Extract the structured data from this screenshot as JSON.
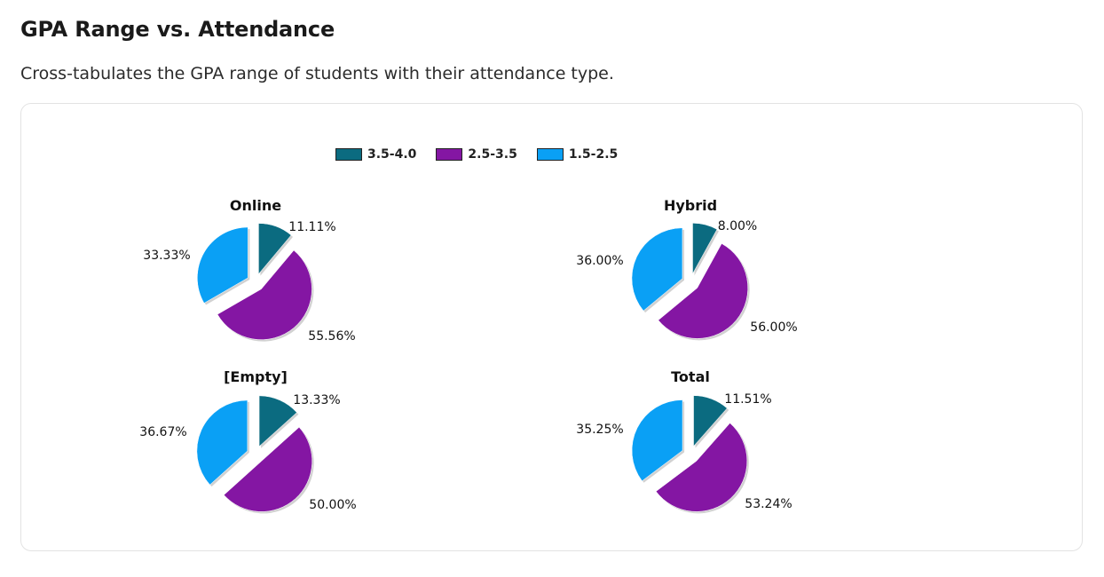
{
  "page": {
    "title": "GPA Range vs. Attendance",
    "subtitle": "Cross-tabulates the GPA range of students with their attendance type."
  },
  "legend": [
    {
      "label": "3.5-4.0",
      "color": "#0b6b80"
    },
    {
      "label": "2.5-3.5",
      "color": "#8416a3"
    },
    {
      "label": "1.5-2.5",
      "color": "#0aa0f5"
    }
  ],
  "chart_data": [
    {
      "type": "pie",
      "title": "Online",
      "categories": [
        "3.5-4.0",
        "2.5-3.5",
        "1.5-2.5"
      ],
      "values": [
        11.11,
        55.56,
        33.33
      ],
      "labels": [
        "11.11%",
        "55.56%",
        "33.33%"
      ]
    },
    {
      "type": "pie",
      "title": "Hybrid",
      "categories": [
        "3.5-4.0",
        "2.5-3.5",
        "1.5-2.5"
      ],
      "values": [
        8.0,
        56.0,
        36.0
      ],
      "labels": [
        "8.00%",
        "56.00%",
        "36.00%"
      ]
    },
    {
      "type": "pie",
      "title": "[Empty]",
      "categories": [
        "3.5-4.0",
        "2.5-3.5",
        "1.5-2.5"
      ],
      "values": [
        13.33,
        50.0,
        36.67
      ],
      "labels": [
        "13.33%",
        "50.00%",
        "36.67%"
      ]
    },
    {
      "type": "pie",
      "title": "Total",
      "categories": [
        "3.5-4.0",
        "2.5-3.5",
        "1.5-2.5"
      ],
      "values": [
        11.51,
        53.24,
        35.25
      ],
      "labels": [
        "11.51%",
        "53.24%",
        "35.25%"
      ]
    }
  ]
}
